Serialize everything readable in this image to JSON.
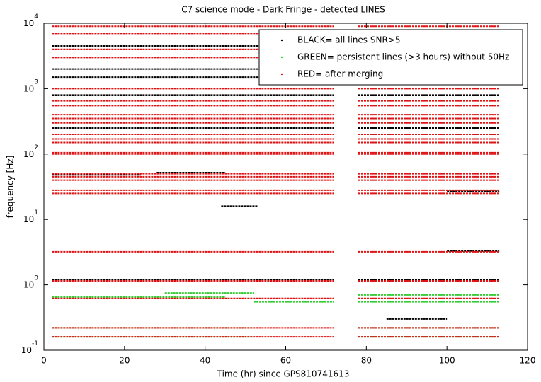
{
  "chart_data": {
    "type": "scatter",
    "title": "C7 science mode - Dark Fringe - detected LINES",
    "x_label": "Time (hr) since GPS810741613",
    "y_label": "frequency [Hz]",
    "log_y": true,
    "legend": "upper right",
    "xlim": [
      0,
      120
    ],
    "xticks": [
      0,
      20,
      40,
      60,
      80,
      100,
      120
    ],
    "ylim": [
      0.1,
      10000
    ],
    "yticks": [
      {
        "value": 0.1,
        "label": "10",
        "exponent": "-1"
      },
      {
        "value": 1,
        "label": "10",
        "exponent": "0"
      },
      {
        "value": 10,
        "label": "10",
        "exponent": "1"
      },
      {
        "value": 100,
        "label": "10",
        "exponent": "2"
      },
      {
        "value": 1000,
        "label": "10",
        "exponent": "3"
      },
      {
        "value": 10000,
        "label": "10",
        "exponent": "4"
      }
    ],
    "series": [
      {
        "name": "BLACK= all lines SNR>5",
        "color": "#000000",
        "segments": [
          [
            2,
            72,
            2000
          ],
          [
            78,
            113,
            2000
          ],
          [
            2,
            72,
            4500
          ],
          [
            78,
            113,
            4500
          ],
          [
            2,
            72,
            1500
          ],
          [
            80,
            113,
            1500
          ],
          [
            44,
            53,
            16
          ],
          [
            28,
            45,
            52
          ],
          [
            2,
            24,
            48
          ],
          [
            100,
            113,
            3.3
          ],
          [
            100,
            113,
            27
          ],
          [
            85,
            100,
            0.3
          ],
          [
            2,
            72,
            1.2
          ],
          [
            78,
            113,
            1.2
          ],
          [
            2,
            72,
            250
          ],
          [
            78,
            113,
            250
          ],
          [
            2,
            72,
            800
          ],
          [
            78,
            113,
            800
          ]
        ]
      },
      {
        "name": "GREEN= persistent lines (>3 hours) without 50Hz",
        "color": "#33cc33",
        "segments": [
          [
            2,
            52,
            0.16
          ],
          [
            78,
            113,
            0.16
          ],
          [
            2,
            52,
            0.22
          ],
          [
            78,
            113,
            0.22
          ],
          [
            2,
            45,
            0.65
          ],
          [
            78,
            113,
            0.7
          ],
          [
            30,
            52,
            0.75
          ],
          [
            52,
            72,
            0.55
          ],
          [
            78,
            113,
            0.55
          ]
        ]
      },
      {
        "name": "RED= after merging",
        "color": "#dd1111",
        "segments": [
          [
            2,
            72,
            0.16
          ],
          [
            78,
            113,
            0.16
          ],
          [
            2,
            72,
            0.22
          ],
          [
            78,
            113,
            0.22
          ],
          [
            2,
            72,
            0.62
          ],
          [
            78,
            113,
            0.62
          ],
          [
            2,
            72,
            1.15
          ],
          [
            78,
            113,
            1.15
          ],
          [
            2,
            72,
            3.2
          ],
          [
            78,
            113,
            3.2
          ],
          [
            2,
            72,
            25
          ],
          [
            78,
            113,
            25
          ],
          [
            2,
            72,
            28
          ],
          [
            78,
            113,
            28
          ],
          [
            2,
            72,
            40
          ],
          [
            78,
            113,
            40
          ],
          [
            2,
            72,
            45
          ],
          [
            78,
            113,
            45
          ],
          [
            2,
            72,
            50
          ],
          [
            78,
            113,
            50
          ],
          [
            2,
            72,
            100
          ],
          [
            78,
            113,
            100
          ],
          [
            2,
            72,
            105
          ],
          [
            78,
            113,
            105
          ],
          [
            2,
            72,
            150
          ],
          [
            78,
            113,
            150
          ],
          [
            2,
            72,
            170
          ],
          [
            78,
            113,
            170
          ],
          [
            2,
            72,
            200
          ],
          [
            78,
            113,
            200
          ],
          [
            2,
            72,
            300
          ],
          [
            78,
            113,
            300
          ],
          [
            2,
            72,
            350
          ],
          [
            78,
            113,
            350
          ],
          [
            2,
            72,
            400
          ],
          [
            78,
            113,
            400
          ],
          [
            2,
            72,
            550
          ],
          [
            78,
            113,
            550
          ],
          [
            2,
            72,
            650
          ],
          [
            78,
            113,
            650
          ],
          [
            2,
            72,
            1000
          ],
          [
            78,
            113,
            1000
          ],
          [
            2,
            72,
            3000
          ],
          [
            78,
            113,
            3000
          ],
          [
            2,
            72,
            4000
          ],
          [
            2,
            72,
            7000
          ],
          [
            78,
            113,
            7000
          ],
          [
            2,
            72,
            9000
          ],
          [
            78,
            113,
            9000
          ]
        ]
      }
    ]
  }
}
